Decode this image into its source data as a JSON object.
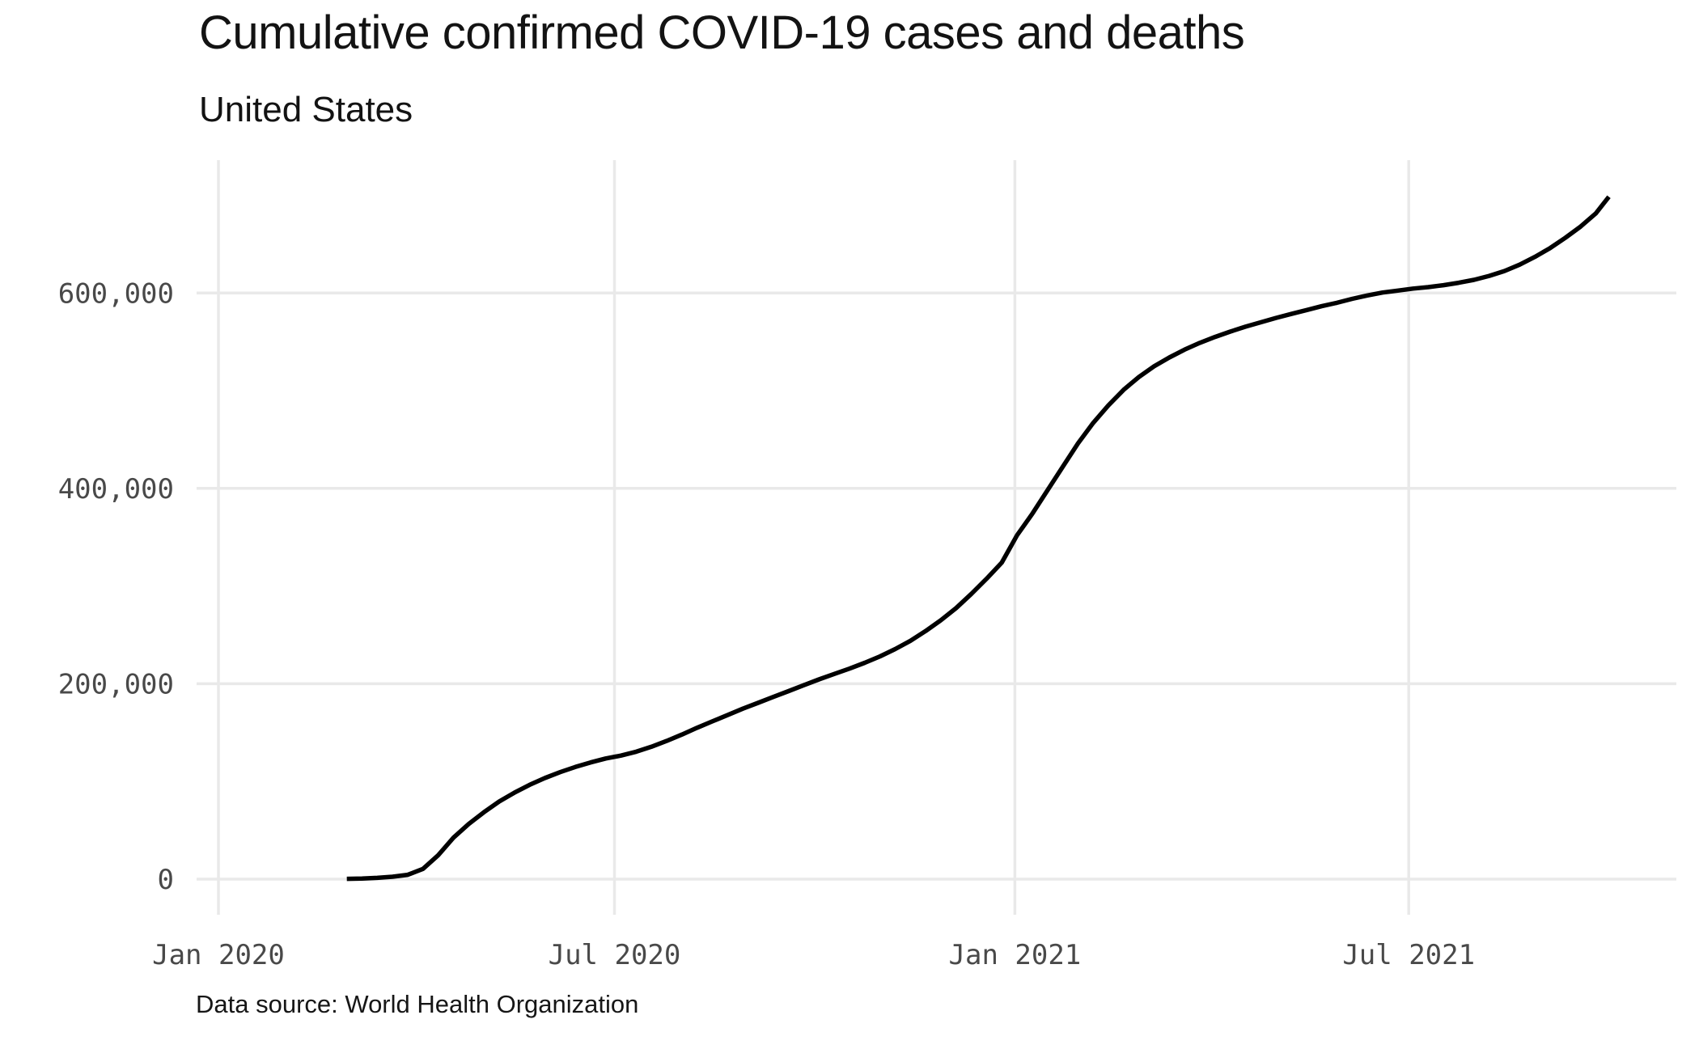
{
  "chart_data": {
    "type": "line",
    "title": "Cumulative confirmed COVID-19 cases and deaths",
    "subtitle": "United States",
    "source_note": "Data source: World Health Organization",
    "grid": true,
    "legend": false,
    "colors": {
      "line": "#000000",
      "grid": "#e9e9e9",
      "tick_label": "#494949",
      "text": "#161616"
    },
    "x_domain": [
      "2020-01-01",
      "2021-11-01"
    ],
    "ylim": [
      0,
      736000
    ],
    "xlabel": "",
    "ylabel": "",
    "x_ticks": [
      {
        "date": "2020-01-01",
        "label": "Jan 2020"
      },
      {
        "date": "2020-07-01",
        "label": "Jul 2020"
      },
      {
        "date": "2021-01-01",
        "label": "Jan 2021"
      },
      {
        "date": "2021-07-01",
        "label": "Jul 2021"
      }
    ],
    "y_ticks": [
      {
        "value": 0,
        "label": "0"
      },
      {
        "value": 200000,
        "label": "200,000"
      },
      {
        "value": 400000,
        "label": "400,000"
      },
      {
        "value": 600000,
        "label": "600,000"
      }
    ],
    "series": [
      {
        "name": "United States",
        "points": [
          [
            "2020-02-29",
            300
          ],
          [
            "2020-03-07",
            600
          ],
          [
            "2020-03-14",
            1300
          ],
          [
            "2020-03-21",
            2500
          ],
          [
            "2020-03-28",
            4500
          ],
          [
            "2020-04-04",
            10500
          ],
          [
            "2020-04-11",
            24500
          ],
          [
            "2020-04-18",
            42500
          ],
          [
            "2020-04-25",
            56500
          ],
          [
            "2020-05-02",
            68500
          ],
          [
            "2020-05-09",
            79500
          ],
          [
            "2020-05-16",
            88500
          ],
          [
            "2020-05-23",
            96500
          ],
          [
            "2020-05-30",
            103500
          ],
          [
            "2020-06-06",
            109500
          ],
          [
            "2020-06-13",
            114800
          ],
          [
            "2020-06-20",
            119500
          ],
          [
            "2020-06-27",
            123500
          ],
          [
            "2020-07-04",
            126500
          ],
          [
            "2020-07-11",
            130500
          ],
          [
            "2020-07-18",
            135500
          ],
          [
            "2020-07-25",
            141500
          ],
          [
            "2020-08-01",
            148000
          ],
          [
            "2020-08-08",
            155000
          ],
          [
            "2020-08-15",
            161500
          ],
          [
            "2020-08-22",
            168000
          ],
          [
            "2020-08-29",
            174500
          ],
          [
            "2020-09-05",
            180500
          ],
          [
            "2020-09-12",
            186500
          ],
          [
            "2020-09-19",
            192500
          ],
          [
            "2020-09-26",
            198500
          ],
          [
            "2020-10-03",
            204500
          ],
          [
            "2020-10-10",
            210000
          ],
          [
            "2020-10-17",
            215500
          ],
          [
            "2020-10-24",
            221500
          ],
          [
            "2020-10-31",
            228000
          ],
          [
            "2020-11-07",
            235500
          ],
          [
            "2020-11-14",
            244000
          ],
          [
            "2020-11-21",
            254000
          ],
          [
            "2020-11-28",
            265000
          ],
          [
            "2020-12-05",
            277500
          ],
          [
            "2020-12-12",
            292000
          ],
          [
            "2020-12-19",
            307500
          ],
          [
            "2020-12-26",
            324000
          ],
          [
            "2021-01-02",
            352000
          ],
          [
            "2021-01-09",
            374000
          ],
          [
            "2021-01-16",
            398000
          ],
          [
            "2021-01-23",
            422000
          ],
          [
            "2021-01-30",
            446000
          ],
          [
            "2021-02-06",
            467000
          ],
          [
            "2021-02-13",
            485000
          ],
          [
            "2021-02-20",
            501000
          ],
          [
            "2021-02-27",
            514000
          ],
          [
            "2021-03-06",
            525000
          ],
          [
            "2021-03-13",
            534000
          ],
          [
            "2021-03-20",
            542000
          ],
          [
            "2021-03-27",
            549000
          ],
          [
            "2021-04-03",
            555000
          ],
          [
            "2021-04-10",
            560500
          ],
          [
            "2021-04-17",
            565500
          ],
          [
            "2021-04-24",
            570000
          ],
          [
            "2021-05-01",
            574500
          ],
          [
            "2021-05-08",
            578500
          ],
          [
            "2021-05-15",
            582500
          ],
          [
            "2021-05-22",
            586500
          ],
          [
            "2021-05-29",
            590000
          ],
          [
            "2021-06-05",
            594000
          ],
          [
            "2021-06-12",
            597500
          ],
          [
            "2021-06-19",
            600500
          ],
          [
            "2021-06-26",
            602500
          ],
          [
            "2021-07-03",
            604500
          ],
          [
            "2021-07-10",
            606000
          ],
          [
            "2021-07-17",
            608000
          ],
          [
            "2021-07-24",
            610500
          ],
          [
            "2021-07-31",
            613500
          ],
          [
            "2021-08-07",
            617500
          ],
          [
            "2021-08-14",
            622500
          ],
          [
            "2021-08-21",
            629000
          ],
          [
            "2021-08-28",
            637000
          ],
          [
            "2021-09-04",
            646000
          ],
          [
            "2021-09-11",
            656500
          ],
          [
            "2021-09-18",
            668000
          ],
          [
            "2021-09-25",
            681500
          ],
          [
            "2021-10-01",
            698500
          ]
        ]
      }
    ]
  }
}
